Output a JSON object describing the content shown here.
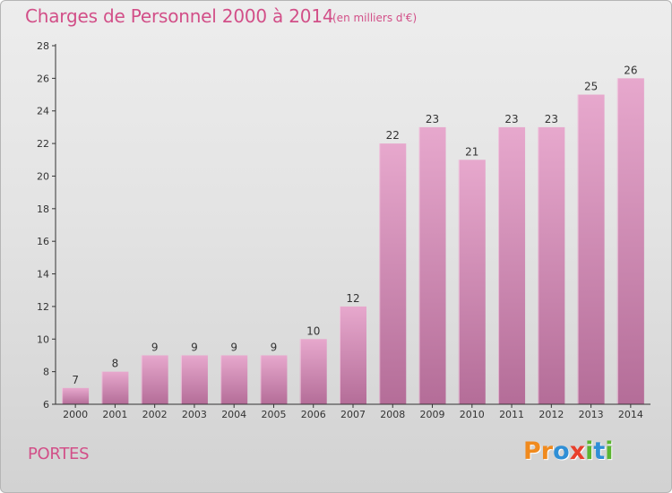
{
  "title": "Charges de Personnel 2000 à 2014",
  "subtitle": "(en milliers d'€)",
  "place": "PORTES",
  "logo": {
    "letters": [
      "P",
      "r",
      "o",
      "x",
      "i",
      "t",
      "i"
    ],
    "colors": [
      "#f08a1e",
      "#f08a1e",
      "#2f8fd6",
      "#e8402c",
      "#5bb531",
      "#2f8fd6",
      "#5bb531"
    ]
  },
  "colors": {
    "title": "#d24f88",
    "bar_top": "#e7a8cd",
    "bar_bottom": "#b46d98",
    "axis": "#333333"
  },
  "chart_data": {
    "type": "bar",
    "categories": [
      "2000",
      "2001",
      "2002",
      "2003",
      "2004",
      "2005",
      "2006",
      "2007",
      "2008",
      "2009",
      "2010",
      "2011",
      "2012",
      "2013",
      "2014"
    ],
    "values": [
      7,
      8,
      9,
      9,
      9,
      9,
      10,
      12,
      22,
      23,
      21,
      23,
      23,
      25,
      26
    ],
    "ylim": [
      6,
      28
    ],
    "yticks": [
      6,
      8,
      10,
      12,
      14,
      16,
      18,
      20,
      22,
      24,
      26,
      28
    ],
    "xlabel": "",
    "ylabel": "",
    "grid": false,
    "data_labels": true
  }
}
